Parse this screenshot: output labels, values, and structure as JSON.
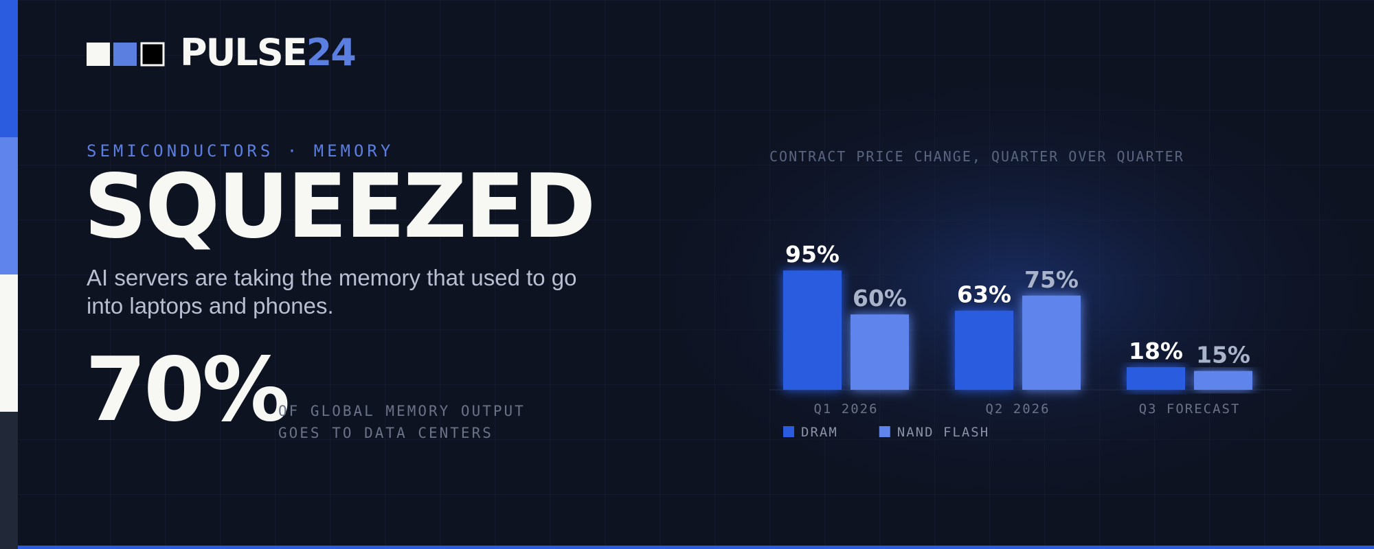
{
  "brand": {
    "name": "PULSE",
    "number": "24"
  },
  "kicker": "SEMICONDUCTORS · MEMORY",
  "headline": "SQUEEZED",
  "body": "AI servers are taking the memory that used to go into laptops and phones.",
  "stat": {
    "value": "70%",
    "label_lines": [
      "OF GLOBAL MEMORY OUTPUT",
      "GOES TO DATA CENTERS"
    ]
  },
  "chart_data": {
    "type": "bar",
    "title": "CONTRACT PRICE CHANGE, QUARTER OVER QUARTER",
    "categories": [
      "Q1 2026",
      "Q2 2026",
      "Q3 FORECAST"
    ],
    "series": [
      {
        "name": "DRAM",
        "color": "#2b5ce0",
        "label_color": "#ffffff",
        "values": [
          95,
          63,
          18
        ],
        "value_labels": [
          "95%",
          "63%",
          "18%"
        ]
      },
      {
        "name": "NAND FLASH",
        "color": "#5f85ec",
        "label_color": "#a9b3c9",
        "values": [
          60,
          75,
          15
        ],
        "value_labels": [
          "60%",
          "75%",
          "15%"
        ]
      }
    ]
  }
}
